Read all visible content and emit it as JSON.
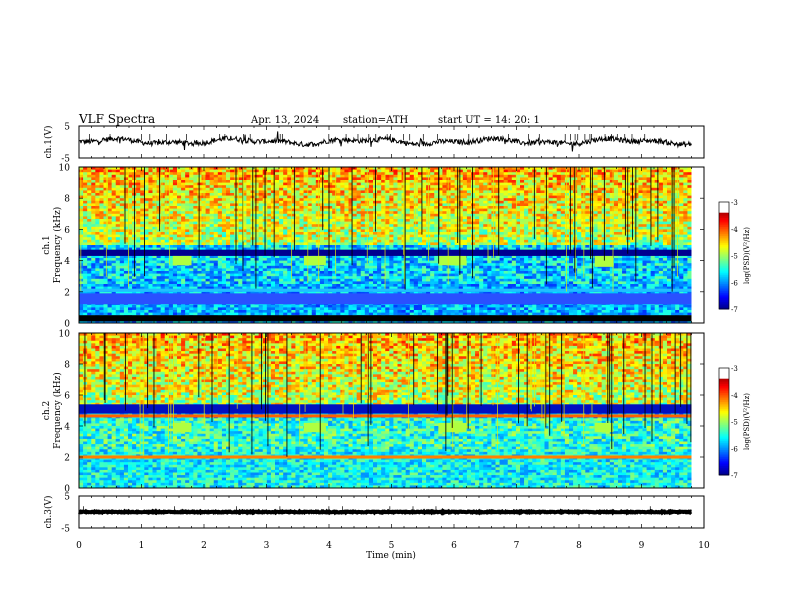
{
  "header": {
    "title": "VLF  Spectra",
    "date": "Apr. 13, 2024",
    "station": "station=ATH",
    "start": "start  UT  =   14: 20: 1"
  },
  "chart_data": [
    {
      "type": "line",
      "panel": "ch1-waveform",
      "ylabel": "ch.1(V)",
      "ylim": [
        -5,
        5
      ],
      "ytick_labels": [
        "5",
        "-5"
      ],
      "xlim": [
        0,
        10
      ],
      "data_end_min": 9.8,
      "baseline_v": 0.2,
      "note_level": "continuous noisy trace near 0 V with sporadic spikes"
    },
    {
      "type": "heatmap",
      "panel": "ch1-spectrogram",
      "ylabel": "ch.1\nFrequency  (kHz)",
      "ylim": [
        0,
        10
      ],
      "ytick_labels": [
        "0",
        "2",
        "4",
        "6",
        "8",
        "10"
      ],
      "xlim": [
        0,
        10
      ],
      "data_end_min": 9.8,
      "bands": [
        {
          "f0": 0.1,
          "f1": 0.5,
          "color": "#000000"
        },
        {
          "f0": 1.2,
          "f1": 1.9,
          "color": "#2a50ff"
        },
        {
          "f0": 2.0,
          "f1": 2.2,
          "color": "#20c0ff"
        },
        {
          "f0": 4.3,
          "f1": 4.7,
          "color": "#000090"
        }
      ],
      "bursts": [
        {
          "t0": 1.5,
          "t1": 1.8,
          "f0": 3.7,
          "f1": 4.3
        },
        {
          "t0": 3.6,
          "t1": 3.95,
          "f0": 3.7,
          "f1": 4.3
        },
        {
          "t0": 5.75,
          "t1": 6.2,
          "f0": 3.7,
          "f1": 4.3
        },
        {
          "t0": 8.25,
          "t1": 8.55,
          "f0": 3.6,
          "f1": 4.3
        }
      ],
      "colorbar": {
        "label": "log(PSD)(V²/Hz)",
        "range": [
          -7,
          -3
        ],
        "tick_labels": [
          "-3",
          "-4",
          "-5",
          "-6",
          "-7"
        ]
      }
    },
    {
      "type": "heatmap",
      "panel": "ch2-spectrogram",
      "ylabel": "ch.2\nFrequency  (kHz)",
      "ylim": [
        0,
        10
      ],
      "ytick_labels": [
        "0",
        "2",
        "4",
        "6",
        "8",
        "10"
      ],
      "xlim": [
        0,
        10
      ],
      "data_end_min": 9.8,
      "bands": [
        {
          "f0": 1.9,
          "f1": 2.1,
          "color": "#ff8000"
        },
        {
          "f0": 4.55,
          "f1": 4.75,
          "color": "#ff6000"
        },
        {
          "f0": 4.8,
          "f1": 5.4,
          "color": "#0010c0"
        }
      ],
      "bursts": [
        {
          "t0": 1.5,
          "t1": 1.8,
          "f0": 3.6,
          "f1": 4.2
        },
        {
          "t0": 3.6,
          "t1": 3.95,
          "f0": 3.6,
          "f1": 4.2
        },
        {
          "t0": 5.75,
          "t1": 6.2,
          "f0": 3.6,
          "f1": 4.2
        },
        {
          "t0": 8.25,
          "t1": 8.55,
          "f0": 3.6,
          "f1": 4.2
        }
      ],
      "colorbar": {
        "label": "log(PSD)(V²/Hz)",
        "range": [
          -7,
          -3
        ],
        "tick_labels": [
          "-3",
          "-4",
          "-5",
          "-6",
          "-7"
        ]
      }
    },
    {
      "type": "line",
      "panel": "ch3-waveform",
      "ylabel": "ch.3(V)",
      "ylim": [
        -5,
        5
      ],
      "ytick_labels": [
        "5",
        "-5"
      ],
      "xlim": [
        0,
        10
      ],
      "data_end_min": 9.8,
      "baseline_v": 0.0,
      "note_level": "thick flat trace near 0 V"
    }
  ],
  "xaxis": {
    "label": "Time  (min)",
    "range": [
      0,
      10
    ],
    "tick_labels": [
      "0",
      "1",
      "2",
      "3",
      "4",
      "5",
      "6",
      "7",
      "8",
      "9",
      "10"
    ]
  }
}
